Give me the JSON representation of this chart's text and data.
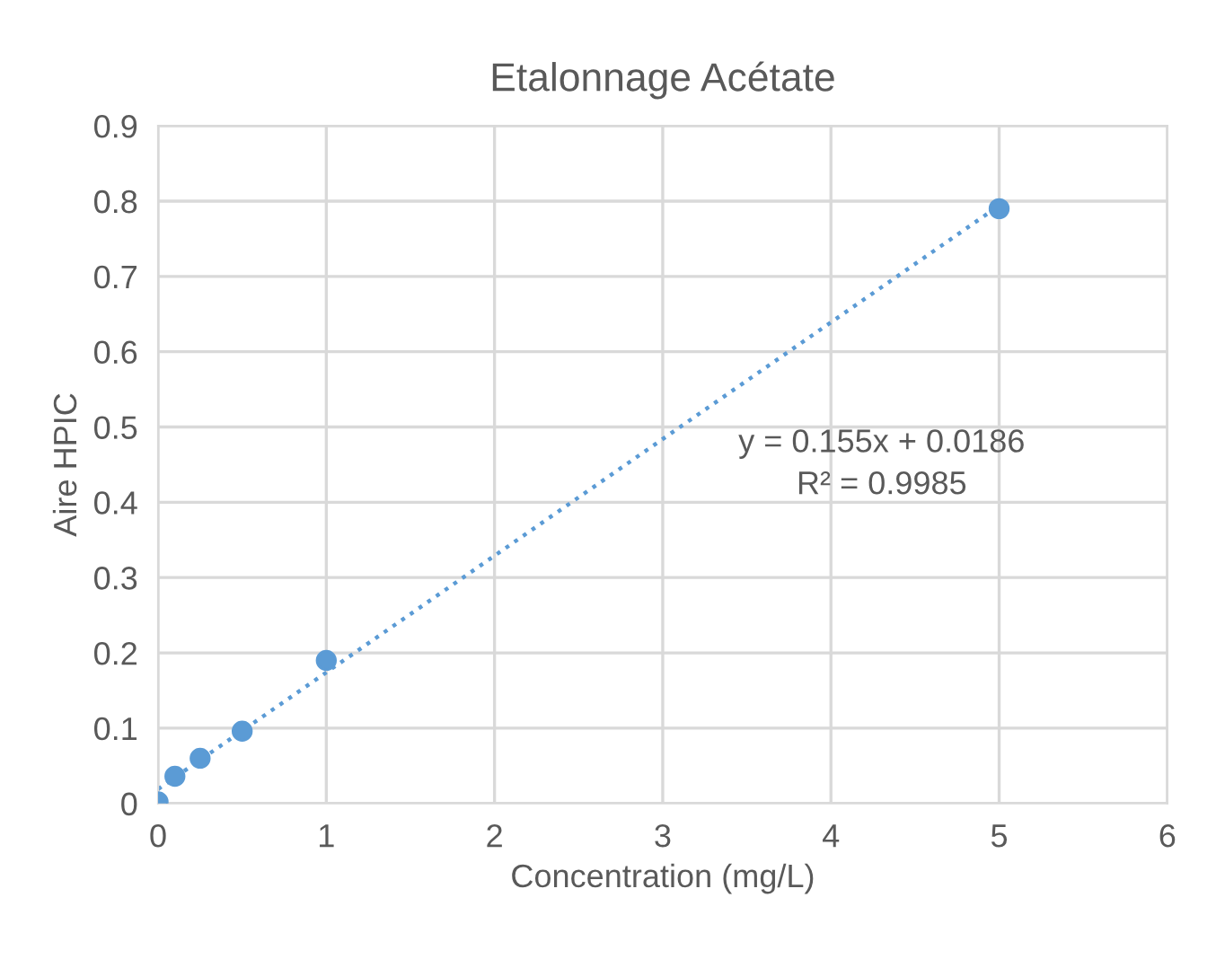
{
  "chart_data": {
    "type": "scatter",
    "title": "Etalonnage Acétate",
    "xlabel": "Concentration (mg/L)",
    "ylabel": "Aire HPIC",
    "series": [
      {
        "color": "#5b9bd5",
        "x": [
          0,
          0.1,
          0.25,
          0.5,
          1,
          5
        ],
        "values": [
          0.002,
          0.036,
          0.06,
          0.096,
          0.19,
          0.79
        ],
        "marker": "circle"
      },
      {
        "type": "line",
        "color": "#5b9bd5",
        "x": [
          0,
          5
        ],
        "values": [
          0.019,
          0.794
        ],
        "line_style": "dotted",
        "marker": "none"
      }
    ],
    "annotations": [
      "y = 0.155x + 0.0186\nR² = 0.9985"
    ],
    "xlim": [
      0,
      6
    ],
    "xticks": [
      0,
      1,
      2,
      3,
      4,
      5,
      6
    ],
    "ylim": [
      0,
      0.9
    ],
    "yticks": [
      0,
      0.1,
      0.2,
      0.3,
      0.4,
      0.5,
      0.6,
      0.7,
      0.8,
      0.9
    ],
    "grid": true
  }
}
